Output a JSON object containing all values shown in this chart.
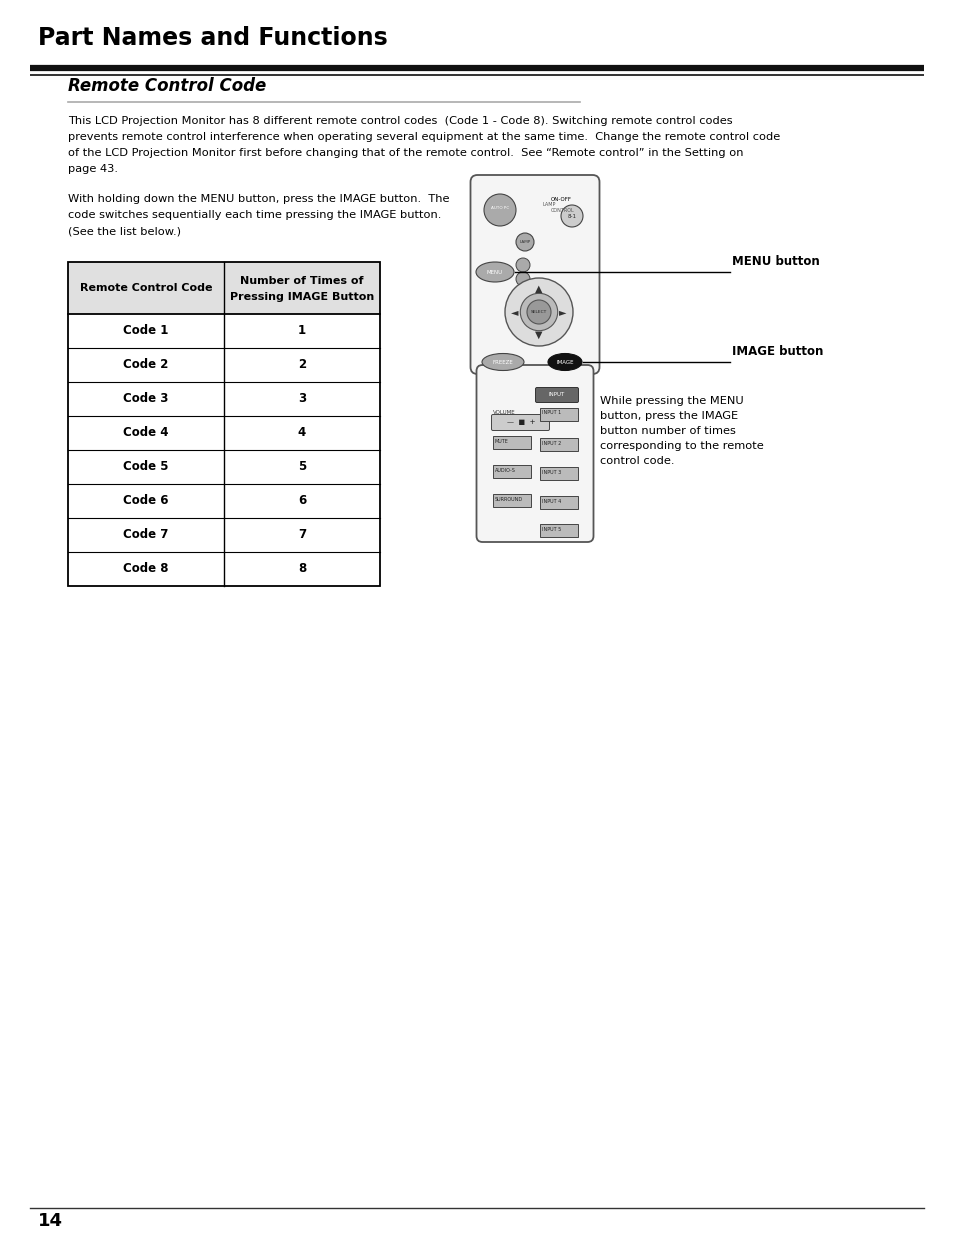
{
  "page_title": "Part Names and Functions",
  "section_title": "Remote Control Code",
  "body_text_1": "This LCD Projection Monitor has 8 different remote control codes  (Code 1 - Code 8). Switching remote control codes\nprevents remote control interference when operating several equipment at the same time.  Change the remote control code\nof the LCD Projection Monitor first before changing that of the remote control.  See “Remote control” in the Setting on\npage 43.",
  "body_text_2": "With holding down the MENU button, press the IMAGE button.  The\ncode switches sequentially each time pressing the IMAGE button.\n(See the list below.)",
  "side_text": "While pressing the MENU\nbutton, press the IMAGE\nbutton number of times\ncorresponding to the remote\ncontrol code.",
  "menu_label": "MENU button",
  "image_label": "IMAGE button",
  "table_header": [
    "Remote Control Code",
    "Number of Times of\nPressing IMAGE Button"
  ],
  "table_rows": [
    [
      "Code 1",
      "1"
    ],
    [
      "Code 2",
      "2"
    ],
    [
      "Code 3",
      "3"
    ],
    [
      "Code 4",
      "4"
    ],
    [
      "Code 5",
      "5"
    ],
    [
      "Code 6",
      "6"
    ],
    [
      "Code 7",
      "7"
    ],
    [
      "Code 8",
      "8"
    ]
  ],
  "page_number": "14",
  "bg_color": "#ffffff",
  "text_color": "#000000",
  "remote_fill": "#f5f5f5",
  "remote_edge": "#555555",
  "btn_fill": "#aaaaaa",
  "btn_edge": "#444444"
}
